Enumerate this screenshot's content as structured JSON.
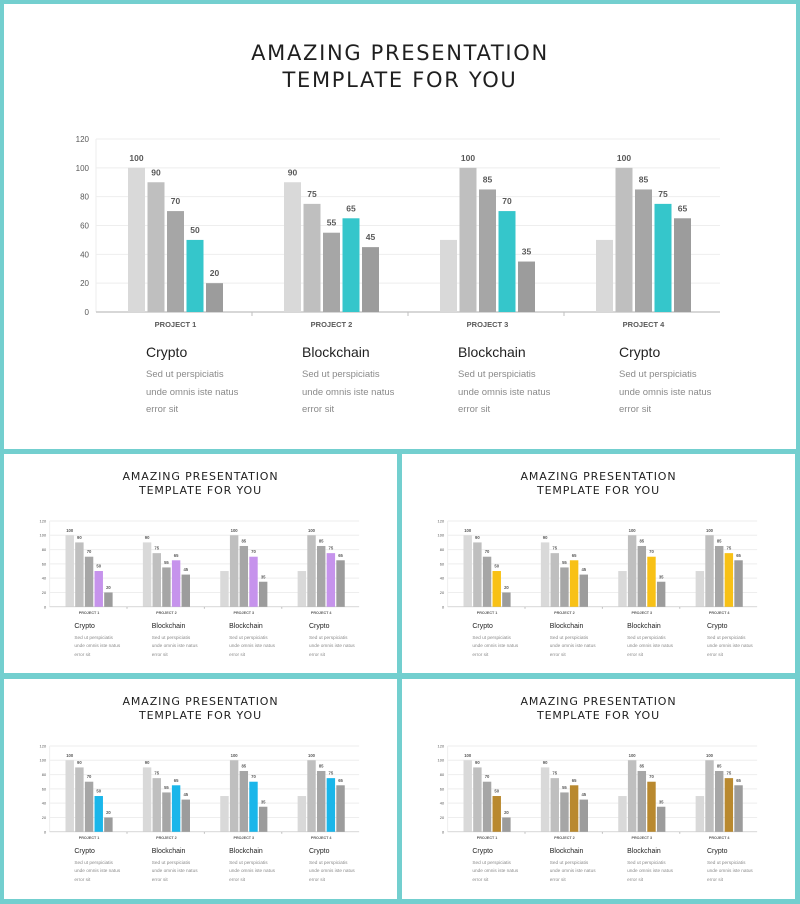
{
  "title_line1": "AMAZING PRESENTATION",
  "title_line2": "TEMPLATE FOR YOU",
  "chart_data": {
    "type": "bar",
    "categories": [
      "PROJECT 1",
      "PROJECT 2",
      "PROJECT 3",
      "PROJECT 4"
    ],
    "series": [
      {
        "values": [
          100,
          90,
          50,
          50
        ]
      },
      {
        "values": [
          90,
          75,
          100,
          100
        ]
      },
      {
        "values": [
          70,
          55,
          85,
          85
        ]
      },
      {
        "values": [
          50,
          65,
          70,
          75
        ]
      },
      {
        "values": [
          20,
          45,
          35,
          65
        ]
      }
    ],
    "data_labels": [
      [
        "100",
        "90",
        "70",
        "50",
        "20"
      ],
      [
        "90",
        "75",
        "55",
        "65",
        "45"
      ],
      [
        "",
        "100",
        "85",
        "70",
        "35"
      ],
      [
        "",
        "100",
        "85",
        "75",
        "65"
      ]
    ],
    "xlabel": "",
    "ylabel": "",
    "ylim": [
      0,
      120
    ],
    "yticks": [
      0,
      20,
      40,
      60,
      80,
      100,
      120
    ],
    "grid": true,
    "legend": "none"
  },
  "captions": [
    {
      "heading": "Crypto",
      "body": [
        "Sed ut perspiciatis",
        "unde omnis iste natus",
        "error sit"
      ]
    },
    {
      "heading": "Blockchain",
      "body": [
        "Sed ut perspiciatis",
        "unde omnis iste natus",
        "error sit"
      ]
    },
    {
      "heading": "Blockchain",
      "body": [
        "Sed ut perspiciatis",
        "unde omnis iste natus",
        "error sit"
      ]
    },
    {
      "heading": "Crypto",
      "body": [
        "Sed ut perspiciatis",
        "unde omnis iste natus",
        "error sit"
      ]
    }
  ],
  "colors": {
    "frame": "#73cfcf",
    "grey_light": "#d9d9d9",
    "grey_mid": "#bfbfbf",
    "grey_dark": "#a6a6a6",
    "grey_darker": "#9c9c9c",
    "grid": "#eeeeee",
    "axis": "#bfbfbf",
    "label": "#595959"
  },
  "slides": [
    {
      "id": "main",
      "accent": "#35c6cb"
    },
    {
      "id": "purple",
      "accent": "#c693ec"
    },
    {
      "id": "yellow",
      "accent": "#f8c116"
    },
    {
      "id": "blue",
      "accent": "#1ab6ea"
    },
    {
      "id": "bronze",
      "accent": "#b9892f"
    }
  ]
}
